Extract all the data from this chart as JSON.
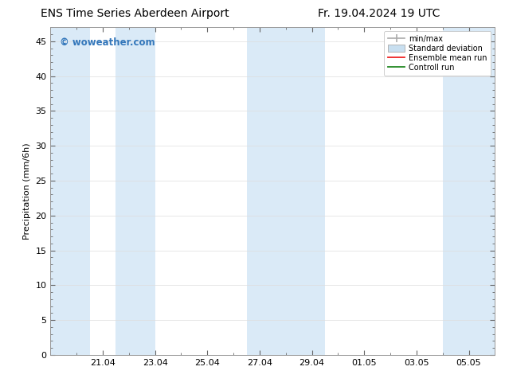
{
  "title_left": "ENS Time Series Aberdeen Airport",
  "title_right": "Fr. 19.04.2024 19 UTC",
  "ylabel": "Precipitation (mm/6h)",
  "watermark": "© woweather.com",
  "ylim": [
    0,
    47
  ],
  "yticks": [
    0,
    5,
    10,
    15,
    20,
    25,
    30,
    35,
    40,
    45
  ],
  "xtick_labels": [
    "21.04",
    "23.04",
    "25.04",
    "27.04",
    "29.04",
    "01.05",
    "03.05",
    "05.05"
  ],
  "xmin": 0.0,
  "xmax": 17.0,
  "xtick_positions": [
    2,
    4,
    6,
    8,
    10,
    12,
    14,
    16
  ],
  "shaded_bands": [
    [
      0.0,
      1.5
    ],
    [
      2.5,
      4.0
    ],
    [
      7.5,
      10.5
    ],
    [
      15.0,
      17.0
    ]
  ],
  "shaded_color": "#daeaf7",
  "background_color": "#ffffff",
  "plot_bg_color": "#ffffff",
  "legend_labels": [
    "min/max",
    "Standard deviation",
    "Ensemble mean run",
    "Controll run"
  ],
  "title_fontsize": 10,
  "watermark_color": "#3377bb",
  "grid_color": "#dddddd",
  "tick_label_size": 8,
  "ylabel_fontsize": 8
}
